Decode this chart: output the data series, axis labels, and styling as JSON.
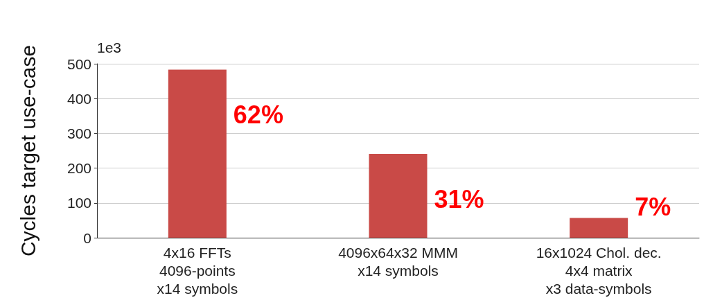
{
  "chart_data": {
    "type": "bar",
    "ylabel": "Cycles target use-case",
    "categories": [
      "4x16 FFTs\n4096-points\nx14 symbols",
      "4096x64x32 MMM\nx14 symbols",
      "16x1024 Chol. dec.\n4x4 matrix\nx3 data-symbols"
    ],
    "values": [
      483,
      241,
      57
    ],
    "color": "#c94a47",
    "ylim": [
      0,
      500
    ],
    "yticks": [
      0,
      100,
      200,
      300,
      400,
      500
    ],
    "grid": "y",
    "annotations": [
      "1e3",
      "62%",
      "31%",
      "7%"
    ]
  }
}
